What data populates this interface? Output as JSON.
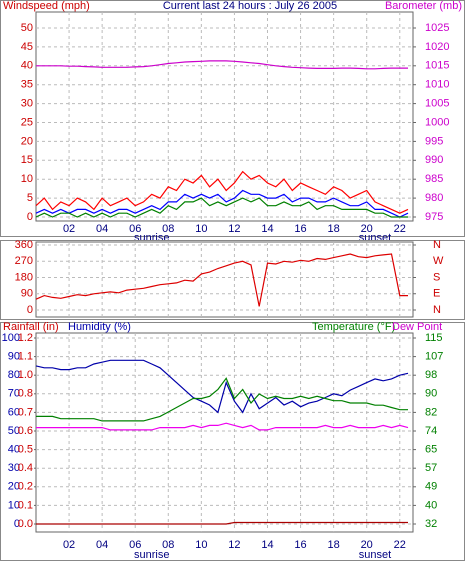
{
  "chart_data": [
    {
      "type": "line",
      "title": "Current last 24 hours : July 26 2005",
      "ylabel": "Windspeed (mph)",
      "y2label": "Barometer (mb)",
      "annotations": [
        "sunrise",
        "sunset"
      ],
      "x": [
        0,
        0.5,
        1,
        1.5,
        2,
        2.5,
        3,
        3.5,
        4,
        4.5,
        5,
        5.5,
        6,
        6.5,
        7,
        7.5,
        8,
        8.5,
        9,
        9.5,
        10,
        10.5,
        11,
        11.5,
        12,
        12.5,
        13,
        13.5,
        14,
        14.5,
        15,
        15.5,
        16,
        16.5,
        17,
        17.5,
        18,
        18.5,
        19,
        19.5,
        20,
        20.5,
        21,
        21.5,
        22,
        22.5
      ],
      "xlim": [
        0,
        22.8
      ],
      "xticks": [
        {
          "value": 2,
          "label": "02"
        },
        {
          "value": 4,
          "label": "04"
        },
        {
          "value": 6,
          "label": "06"
        },
        {
          "value": 8,
          "label": "08"
        },
        10,
        12,
        14,
        16,
        18,
        20,
        22
      ],
      "ylim": [
        0,
        50
      ],
      "yticks": [
        0,
        5,
        10,
        15,
        20,
        25,
        30,
        35,
        40,
        45,
        50
      ],
      "y2lim": [
        975,
        1025
      ],
      "y2ticks": [
        975,
        980,
        985,
        990,
        995,
        1000,
        1005,
        1010,
        1015,
        1020,
        1025
      ],
      "grid": true,
      "series": [
        {
          "color": "#ff0000",
          "values": [
            3,
            5,
            2,
            4,
            3,
            5,
            4,
            2,
            5,
            3,
            4,
            5,
            3,
            4,
            6,
            5,
            8,
            7,
            10,
            9,
            11,
            8,
            10,
            7,
            9,
            12,
            10,
            11,
            9,
            8,
            10,
            7,
            9,
            8,
            7,
            6,
            8,
            7,
            5,
            6,
            7,
            4,
            3,
            2,
            1,
            2
          ]
        },
        {
          "color": "#0000ff",
          "values": [
            1,
            2,
            1,
            2,
            1,
            2,
            2,
            1,
            2,
            1,
            2,
            2,
            1,
            2,
            3,
            2,
            4,
            4,
            6,
            5,
            6,
            5,
            6,
            4,
            5,
            7,
            6,
            6,
            5,
            5,
            6,
            4,
            5,
            5,
            4,
            4,
            5,
            4,
            3,
            3,
            4,
            2,
            2,
            1,
            0,
            1
          ]
        },
        {
          "color": "#008000",
          "values": [
            0,
            1,
            0,
            1,
            1,
            0,
            1,
            0,
            1,
            0,
            1,
            1,
            0,
            1,
            2,
            1,
            3,
            2,
            4,
            4,
            5,
            3,
            4,
            3,
            4,
            5,
            4,
            5,
            3,
            3,
            4,
            3,
            3,
            4,
            2,
            3,
            3,
            2,
            2,
            2,
            2,
            1,
            1,
            0,
            0,
            0
          ]
        },
        {
          "color": "#cc00cc",
          "axis": "y2",
          "values": [
            1015.0,
            1015.0,
            1015.0,
            1015.0,
            1014.9,
            1014.9,
            1014.8,
            1014.7,
            1014.6,
            1014.6,
            1014.6,
            1014.6,
            1014.7,
            1014.8,
            1015.0,
            1015.3,
            1015.6,
            1015.8,
            1016.0,
            1016.1,
            1016.2,
            1016.3,
            1016.3,
            1016.3,
            1016.2,
            1016.0,
            1015.8,
            1015.6,
            1015.3,
            1015.0,
            1014.8,
            1014.6,
            1014.5,
            1014.4,
            1014.3,
            1014.3,
            1014.3,
            1014.4,
            1014.4,
            1014.3,
            1014.2,
            1014.2,
            1014.3,
            1014.4,
            1014.4,
            1014.4
          ]
        }
      ]
    },
    {
      "type": "line",
      "x": [
        0,
        0.5,
        1,
        1.5,
        2,
        2.5,
        3,
        3.5,
        4,
        4.5,
        5,
        5.5,
        6,
        6.5,
        7,
        7.5,
        8,
        8.5,
        9,
        9.5,
        10,
        10.5,
        11,
        11.5,
        12,
        12.5,
        13,
        13.5,
        14,
        14.5,
        15,
        15.5,
        16,
        16.5,
        17,
        17.5,
        18,
        18.5,
        19,
        19.5,
        20,
        20.5,
        21,
        21.5,
        22,
        22.5
      ],
      "xlim": [
        0,
        22.8
      ],
      "xticks": [
        {
          "value": 2,
          "label": "02"
        },
        {
          "value": 4,
          "label": "04"
        },
        {
          "value": 6,
          "label": "06"
        },
        {
          "value": 8,
          "label": "08"
        },
        10,
        12,
        14,
        16,
        18,
        20,
        22
      ],
      "ylim": [
        0,
        360
      ],
      "yticks": [
        0,
        90,
        180,
        270,
        360
      ],
      "y2lim": [
        0,
        360
      ],
      "y2ticks": [
        {
          "value": 360,
          "label": "N"
        },
        {
          "value": 270,
          "label": "W"
        },
        {
          "value": 180,
          "label": "S"
        },
        {
          "value": 90,
          "label": "E"
        },
        {
          "value": 0,
          "label": "N"
        }
      ],
      "grid": true,
      "series": [
        {
          "color": "#dd0000",
          "values": [
            60,
            80,
            70,
            65,
            75,
            85,
            80,
            90,
            95,
            100,
            95,
            110,
            115,
            120,
            130,
            140,
            145,
            150,
            165,
            160,
            200,
            210,
            230,
            245,
            260,
            270,
            250,
            20,
            260,
            255,
            270,
            265,
            275,
            270,
            285,
            280,
            290,
            300,
            310,
            295,
            290,
            300,
            305,
            310,
            80,
            80
          ]
        }
      ]
    },
    {
      "type": "line",
      "labels": [
        "Rainfall (in)",
        "Humidity (%)",
        "Temperature (°F)",
        "Dew Point"
      ],
      "annotations": [
        "sunrise",
        "sunset"
      ],
      "x": [
        0,
        0.5,
        1,
        1.5,
        2,
        2.5,
        3,
        3.5,
        4,
        4.5,
        5,
        5.5,
        6,
        6.5,
        7,
        7.5,
        8,
        8.5,
        9,
        9.5,
        10,
        10.5,
        11,
        11.5,
        12,
        12.5,
        13,
        13.5,
        14,
        14.5,
        15,
        15.5,
        16,
        16.5,
        17,
        17.5,
        18,
        18.5,
        19,
        19.5,
        20,
        20.5,
        21,
        21.5,
        22,
        22.5
      ],
      "xlim": [
        0,
        22.8
      ],
      "xticks": [
        {
          "value": 2,
          "label": "02"
        },
        {
          "value": 4,
          "label": "04"
        },
        {
          "value": 6,
          "label": "06"
        },
        {
          "value": 8,
          "label": "08"
        },
        10,
        12,
        14,
        16,
        18,
        20,
        22
      ],
      "ylim": [
        0,
        100
      ],
      "yticks": [
        0,
        10,
        20,
        30,
        40,
        50,
        60,
        70,
        80,
        90,
        100
      ],
      "rain_ylim": [
        0,
        1.2
      ],
      "rain_yticks": [
        {
          "value": 0,
          "label": "0.0"
        },
        {
          "value": 0.12,
          "label": "0.1"
        },
        {
          "value": 0.24,
          "label": "0.2"
        },
        {
          "value": 0.36,
          "label": "0.4"
        },
        {
          "value": 0.48,
          "label": "0.5"
        },
        0.6,
        {
          "value": 0.72,
          "label": "0.7"
        },
        {
          "value": 0.84,
          "label": "0.8"
        },
        {
          "value": 0.96,
          "label": "1.0"
        },
        {
          "value": 1.08,
          "label": "1.1"
        },
        1.2
      ],
      "y2lim": [
        32,
        115
      ],
      "y2ticks": [
        32,
        {
          "value": 40.3,
          "label": "40"
        },
        {
          "value": 48.6,
          "label": "49"
        },
        {
          "value": 56.9,
          "label": "57"
        },
        {
          "value": 65.2,
          "label": "65"
        },
        {
          "value": 73.5,
          "label": "74"
        },
        {
          "value": 81.8,
          "label": "82"
        },
        {
          "value": 90.1,
          "label": "90"
        },
        {
          "value": 98.4,
          "label": "98"
        },
        {
          "value": 106.7,
          "label": "107"
        },
        115
      ],
      "grid": true,
      "series": [
        {
          "color": "#0000aa",
          "values": [
            85,
            84,
            84,
            83,
            83,
            84,
            84,
            86,
            87,
            88,
            88,
            88,
            88,
            88,
            86,
            84,
            80,
            76,
            72,
            68,
            66,
            64,
            60,
            76,
            66,
            60,
            70,
            62,
            65,
            68,
            64,
            66,
            63,
            65,
            66,
            68,
            70,
            69,
            72,
            74,
            76,
            78,
            77,
            78,
            80,
            81
          ]
        },
        {
          "color": "#008000",
          "axis": "y2",
          "values": [
            80,
            80,
            80,
            79,
            79,
            79,
            79,
            79,
            78,
            78,
            78,
            78,
            78,
            78,
            79,
            80,
            82,
            84,
            86,
            88,
            88,
            89,
            92,
            97,
            88,
            92,
            86,
            90,
            88,
            89,
            88,
            88,
            89,
            88,
            89,
            88,
            87,
            87,
            86,
            86,
            86,
            85,
            85,
            84,
            83,
            83
          ]
        },
        {
          "color": "#ee00ee",
          "axis": "y2",
          "values": [
            75,
            75,
            75,
            75,
            75,
            75,
            75,
            75,
            75,
            74,
            74,
            74,
            74,
            74,
            74,
            75,
            75,
            75,
            75,
            76,
            75,
            76,
            76,
            77,
            76,
            75,
            76,
            74,
            74,
            75,
            75,
            75,
            75,
            75,
            75,
            76,
            75,
            75,
            76,
            75,
            75,
            75,
            76,
            75,
            76,
            75
          ]
        },
        {
          "color": "#aa0000",
          "axis": "rain",
          "values": [
            0,
            0,
            0,
            0,
            0,
            0,
            0,
            0,
            0,
            0,
            0,
            0,
            0,
            0,
            0,
            0,
            0,
            0,
            0,
            0,
            0,
            0,
            0,
            0,
            0.01,
            0.01,
            0.01,
            0.01,
            0.01,
            0.01,
            0.01,
            0.01,
            0.01,
            0.01,
            0.01,
            0.01,
            0.01,
            0.01,
            0.01,
            0.01,
            0.01,
            0.01,
            0.01,
            0.01,
            0.01,
            0.01
          ]
        }
      ]
    }
  ]
}
